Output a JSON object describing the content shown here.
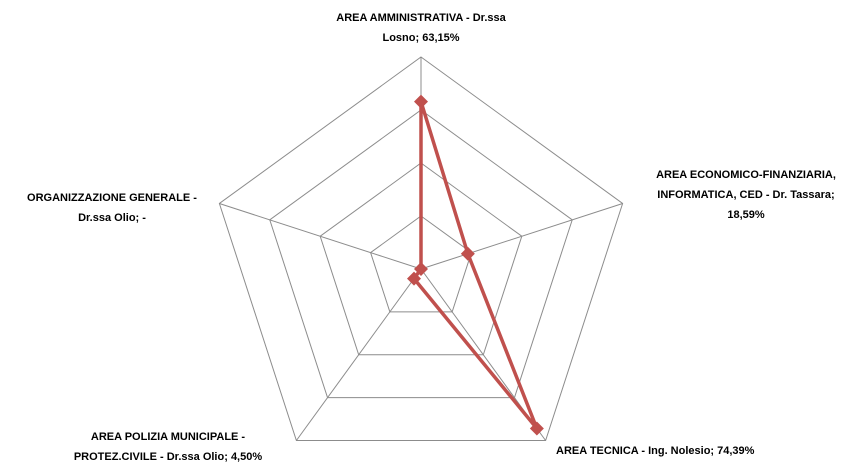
{
  "chart_data": {
    "type": "radar",
    "categories": [
      "AREA AMMINISTRATIVA - Dr.ssa Losno;",
      "AREA ECONOMICO-FINANZIARIA, INFORMATICA, CED - Dr. Tassara;",
      "AREA TECNICA - Ing. Nolesio;",
      "AREA POLIZIA MUNICIPALE - PROTEZ.CIVILE - Dr.ssa Olio;",
      "ORGANIZZAZIONE GENERALE - Dr.ssa Olio;"
    ],
    "values": [
      63.15,
      18.59,
      74.39,
      4.5,
      0
    ],
    "value_labels": [
      "63,15%",
      "18,59%",
      "74,39%",
      "4,50%",
      "-"
    ],
    "color": "#c0504d",
    "ylim": [
      0,
      80
    ],
    "yticks": [
      0,
      20,
      40,
      60,
      80
    ],
    "grid": true
  }
}
